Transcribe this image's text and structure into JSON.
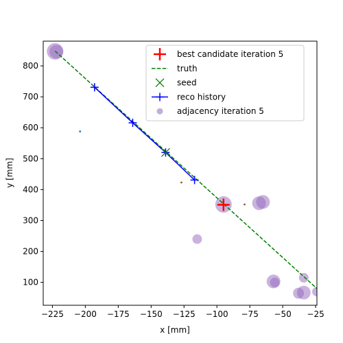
{
  "chart_data": {
    "type": "scatter",
    "xlabel": "x [mm]",
    "ylabel": "y [mm]",
    "xlim": [
      -232,
      -24
    ],
    "ylim": [
      26,
      880
    ],
    "xticks": [
      -225,
      -200,
      -175,
      -150,
      -125,
      -100,
      -75,
      -50,
      -25
    ],
    "yticks": [
      100,
      200,
      300,
      400,
      500,
      600,
      700,
      800
    ],
    "grid": false,
    "legend_position": "top-right",
    "legend": [
      {
        "label": "best candidate iteration 5",
        "marker": "plus",
        "color": "#ff0000"
      },
      {
        "label": "truth",
        "marker": "dashed-line",
        "color": "#008000"
      },
      {
        "label": "seed",
        "marker": "x",
        "color": "#008000"
      },
      {
        "label": "reco history",
        "marker": "line-plus",
        "color": "#0000ff"
      },
      {
        "label": "adjacency iteration 5",
        "marker": "circle",
        "color": "#9467bd"
      }
    ],
    "series": [
      {
        "name": "truth",
        "type": "line",
        "style": "dashed",
        "color": "#008000",
        "x": [
          -223,
          -24
        ],
        "y": [
          848,
          80
        ]
      },
      {
        "name": "reco history",
        "type": "line",
        "color": "#0000ff",
        "x": [
          -193,
          -164,
          -139,
          -117
        ],
        "y": [
          731,
          616,
          520,
          431
        ]
      },
      {
        "name": "seed",
        "type": "scatter",
        "marker": "x",
        "color": "#008000",
        "x": [
          -139
        ],
        "y": [
          520
        ]
      },
      {
        "name": "best candidate iteration 5",
        "type": "scatter",
        "marker": "plus",
        "color": "#ff0000",
        "x": [
          -95
        ],
        "y": [
          351
        ]
      },
      {
        "name": "adjacency iteration 5",
        "type": "scatter",
        "marker": "circle",
        "color": "#9467bd",
        "alpha": 0.5,
        "points": [
          {
            "x": -223,
            "y": 847,
            "r": 12
          },
          {
            "x": -222,
            "y": 846,
            "r": 10
          },
          {
            "x": -95,
            "y": 352,
            "r": 12
          },
          {
            "x": -68,
            "y": 356,
            "r": 10
          },
          {
            "x": -65,
            "y": 360,
            "r": 10
          },
          {
            "x": -115,
            "y": 240,
            "r": 7
          },
          {
            "x": -57,
            "y": 103,
            "r": 10
          },
          {
            "x": -56,
            "y": 100,
            "r": 7
          },
          {
            "x": -34,
            "y": 115,
            "r": 7
          },
          {
            "x": -38,
            "y": 65,
            "r": 8
          },
          {
            "x": -34,
            "y": 67,
            "r": 10
          },
          {
            "x": -24,
            "y": 70,
            "r": 7
          }
        ]
      },
      {
        "name": "",
        "type": "scatter",
        "marker": "dot",
        "color": "#1f77b4",
        "x": [
          -204
        ],
        "y": [
          588
        ]
      },
      {
        "name": "",
        "type": "scatter",
        "marker": "dot",
        "color": "#8c564b",
        "x": [
          -127,
          -79
        ],
        "y": [
          423,
          352
        ]
      }
    ]
  }
}
